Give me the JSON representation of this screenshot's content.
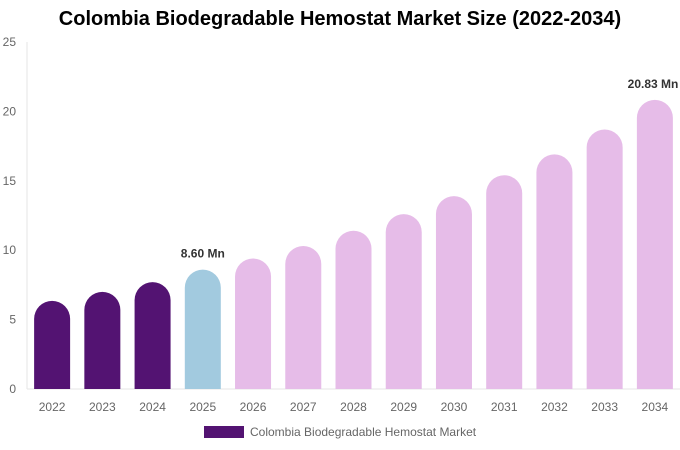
{
  "chart_data": {
    "type": "bar",
    "title": "Colombia Biodegradable Hemostat Market Size (2022-2034)",
    "categories": [
      "2022",
      "2023",
      "2024",
      "2025",
      "2026",
      "2027",
      "2028",
      "2029",
      "2030",
      "2031",
      "2032",
      "2033",
      "2034"
    ],
    "series": [
      {
        "name": "Colombia Biodegradable Hemostat Market",
        "values": [
          6.35,
          7.0,
          7.7,
          8.6,
          9.4,
          10.3,
          11.4,
          12.6,
          13.9,
          15.4,
          16.9,
          18.7,
          20.83
        ]
      }
    ],
    "data_labels": {
      "3": "8.60 Mn",
      "12": "20.83 Mn"
    },
    "ylim": [
      0,
      25
    ],
    "yticks": [
      0,
      5,
      10,
      15,
      20,
      25
    ],
    "xlabel": "",
    "ylabel": "",
    "grid": false,
    "legend": "bottom",
    "colors": {
      "historical": "#531372",
      "current": "#a2cadf",
      "forecast": "#e6bce8"
    }
  }
}
